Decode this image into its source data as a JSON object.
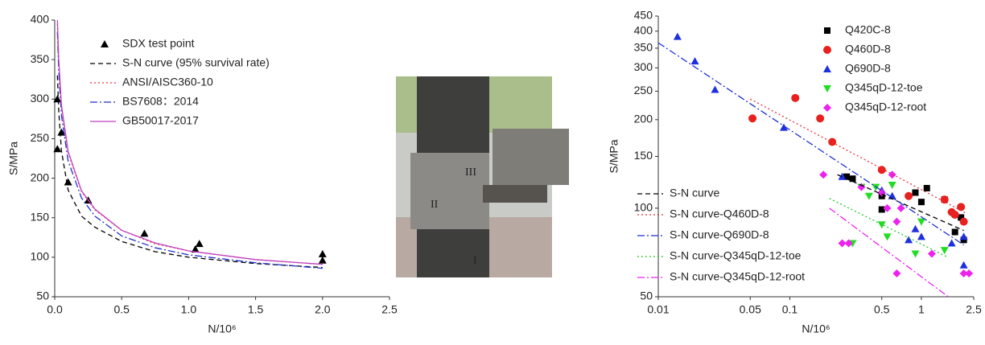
{
  "chart_data": [
    {
      "type": "scatter",
      "y_label": "S/MPa",
      "x_label": "N/10⁶",
      "xlim": [
        0,
        2.5
      ],
      "xticks": [
        {
          "value": 0,
          "label": "0.0"
        },
        0.5,
        {
          "value": 1,
          "label": "1.0"
        },
        1.5,
        {
          "value": 2,
          "label": "2.0"
        },
        2.5
      ],
      "ylim": [
        50,
        400
      ],
      "yticks": [
        50,
        100,
        150,
        200,
        250,
        300,
        350,
        400
      ],
      "series": [
        {
          "name": "SDX test point",
          "color": "#000000",
          "marker": "triangle",
          "x": [
            0.02,
            0.05,
            0.02,
            0.1,
            0.25,
            0.67,
            1.05,
            1.08,
            2.0,
            2.0
          ],
          "values": [
            300,
            258,
            237,
            195,
            172,
            130,
            110,
            117,
            104,
            96
          ]
        },
        {
          "name": "S-N curve (95%  survival rate)",
          "color": "#000000",
          "dash": "dashed",
          "x": [
            0.02,
            0.03,
            0.05,
            0.1,
            0.2,
            0.3,
            0.5,
            0.75,
            1,
            1.5,
            2
          ],
          "values": [
            330,
            285,
            235,
            185,
            152,
            138,
            120,
            107,
            100,
            92,
            87
          ]
        },
        {
          "name": "ANSI/AISC360-10",
          "color": "#e8323c",
          "dash": "dotted",
          "x": [
            0.02,
            0.03,
            0.05,
            0.1,
            0.2,
            0.3,
            0.5,
            0.75,
            1,
            1.5,
            2
          ],
          "values": [
            395,
            345,
            290,
            232,
            183,
            160,
            134,
            117,
            108,
            97,
            91
          ]
        },
        {
          "name": "BS7608：2014",
          "color": "#1f2fd0",
          "dash": "dashdot",
          "x": [
            0.02,
            0.03,
            0.05,
            0.1,
            0.2,
            0.3,
            0.5,
            0.75,
            1,
            1.5,
            2
          ],
          "values": [
            385,
            335,
            280,
            222,
            175,
            152,
            127,
            112,
            103,
            93,
            86
          ]
        },
        {
          "name": "GB50017-2017",
          "color": "#c040c0",
          "dash": "solid",
          "x": [
            0.02,
            0.03,
            0.05,
            0.1,
            0.2,
            0.3,
            0.5,
            0.75,
            1,
            1.5,
            2
          ],
          "values": [
            400,
            350,
            293,
            234,
            184,
            161,
            134,
            118,
            108,
            97,
            91
          ]
        }
      ]
    },
    {
      "type": "scatter",
      "y_label": "S/MPa",
      "x_label": "N/10⁶",
      "xscale": "log",
      "yscale": "log",
      "xlim": [
        0.01,
        2.5
      ],
      "xticks": [
        0.01,
        0.05,
        0.1,
        0.5,
        1,
        2.5
      ],
      "ylim": [
        50,
        450
      ],
      "yticks": [
        50,
        100,
        150,
        200,
        250,
        300,
        350,
        400,
        450
      ],
      "series": [
        {
          "name": "Q420C-8",
          "color": "#000000",
          "marker": "square",
          "x": [
            0.27,
            0.3,
            0.5,
            0.5,
            0.9,
            1.1,
            1.0,
            1.5,
            1.8,
            2.0,
            2.1
          ],
          "values": [
            128,
            126,
            99,
            110,
            113,
            117,
            105,
            107,
            83,
            93,
            78
          ]
        },
        {
          "name": "Q460D-8",
          "color": "#e8201e",
          "marker": "circle",
          "x": [
            0.052,
            0.11,
            0.17,
            0.21,
            0.5,
            0.8,
            1.5,
            1.7,
            2.0,
            2.1,
            1.8
          ],
          "values": [
            202,
            237,
            202,
            168,
            135,
            110,
            107,
            97,
            101,
            90,
            95
          ]
        },
        {
          "name": "Q690D-8",
          "color": "#1e2fe0",
          "marker": "triangle",
          "x": [
            0.014,
            0.019,
            0.027,
            0.09,
            0.25,
            0.5,
            0.6,
            0.8,
            0.9,
            1.0,
            1.7,
            2.1,
            2.1
          ],
          "values": [
            383,
            316,
            253,
            188,
            128,
            115,
            110,
            78,
            85,
            80,
            76,
            80,
            64
          ]
        },
        {
          "name": "Q345qD-12-toe",
          "color": "#22dd22",
          "marker": "triangle-down",
          "x": [
            0.35,
            0.45,
            0.5,
            0.55,
            0.6,
            0.3,
            0.9,
            1.0,
            1.5,
            0.4
          ],
          "values": [
            118,
            118,
            88,
            80,
            120,
            76,
            70,
            90,
            72,
            110
          ]
        },
        {
          "name": "Q345qD-12-root",
          "color": "#ee22ee",
          "marker": "diamond",
          "x": [
            0.18,
            0.25,
            0.28,
            0.35,
            0.5,
            0.55,
            0.6,
            0.65,
            0.7,
            0.65,
            1.2,
            2.1,
            2.3
          ],
          "values": [
            130,
            76,
            76,
            118,
            113,
            100,
            130,
            90,
            100,
            60,
            70,
            60,
            60
          ]
        },
        {
          "name": "S-N curve",
          "color": "#000000",
          "dash": "dashed",
          "x": [
            0.23,
            2.1
          ],
          "values": [
            130,
            84
          ]
        },
        {
          "name": "S-N curve-Q460D-8",
          "color": "#e8323c",
          "dash": "dotted",
          "x": [
            0.05,
            2.2
          ],
          "values": [
            235,
            96
          ]
        },
        {
          "name": "S-N curve-Q690D-8",
          "color": "#1f2fd0",
          "dash": "dashdot",
          "x": [
            0.01,
            2.1
          ],
          "values": [
            365,
            75
          ]
        },
        {
          "name": "S-N curve-Q345qD-12-toe",
          "color": "#22cc22",
          "dash": "dotted",
          "x": [
            0.2,
            1.6
          ],
          "values": [
            108,
            68
          ]
        },
        {
          "name": "S-N curve-Q345qD-12-root",
          "color": "#ee22ee",
          "dash": "dashdot",
          "x": [
            0.2,
            1.6
          ],
          "values": [
            100,
            50
          ]
        }
      ]
    }
  ],
  "photo": {
    "labels": [
      "II",
      "III",
      "I"
    ]
  }
}
